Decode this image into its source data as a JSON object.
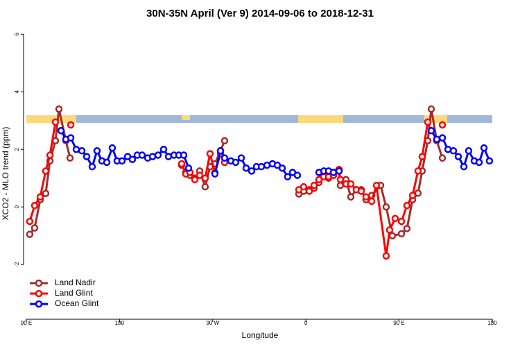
{
  "chart_data": {
    "type": "line",
    "title": "30N-35N April (Ver 9)   2014-09-06 to 2018-12-31",
    "x_label": "Longitude",
    "y_label": "XCO2 - MLO trend (ppm)",
    "xlim": [
      90,
      540
    ],
    "xticks": [
      {
        "value": 90,
        "label": "90 E"
      },
      180,
      {
        "value": 270,
        "label": "90 W"
      },
      {
        "value": 360,
        "label": "0"
      },
      {
        "value": 450,
        "label": "90 E"
      },
      {
        "value": 540,
        "label": "180"
      }
    ],
    "ylim": [
      -3.9,
      6.2
    ],
    "yticks": [
      -2,
      0,
      2,
      4,
      6
    ],
    "legend": "bottom-left",
    "series": [
      {
        "name": "Land Nadir",
        "color": "#a52a2a",
        "x": [
          93.3,
          98.0,
          103.4,
          108.7,
          112.8,
          118.1,
          121.5,
          128.2,
          132.2,
          null,
          240,
          244,
          248,
          252.7,
          257.4,
          262.7,
          267.4,
          272.1,
          277.5,
          281.5,
          null,
          353.2,
          357.8,
          363.2,
          367.9,
          372.6,
          377.3,
          381.9,
          386.6,
          392,
          393.3,
          398.7,
          403.4,
          408.7,
          413.4,
          418.1,
          423.5,
          432.2,
          437.5,
          443.5,
          452.3,
          457.6,
          463,
          468.3,
          472.3,
          477.7,
          481.1,
          486.4,
          491.8
        ],
        "values": [
          -0.95,
          -0.73,
          0.25,
          0.47,
          1.6,
          2.3,
          3.4,
          2.3,
          1.7,
          null,
          1.45,
          1.2,
          1.1,
          1.0,
          1.25,
          0.7,
          1.4,
          1.5,
          1.95,
          2.3,
          null,
          0.45,
          0.55,
          0.6,
          0.65,
          0.85,
          1.1,
          1.0,
          1.1,
          1.25,
          0.75,
          0.95,
          0.35,
          0.6,
          0.6,
          0.25,
          0.4,
          0.75,
          0,
          -1,
          -0.93,
          -0.75,
          0.25,
          0.48,
          1.25,
          2.3,
          3.4,
          2.3,
          1.7
        ]
      },
      {
        "name": "Land Glint",
        "color": "#ff0000",
        "x": [
          93.3,
          98.0,
          103.4,
          108.7,
          112.8,
          118.1,
          null,
          132.9,
          null,
          240,
          244,
          248,
          252.7,
          257.4,
          262.7,
          267.4,
          272.1,
          277.5,
          281.5,
          null,
          353.2,
          357.8,
          363.2,
          367.9,
          372.6,
          377.3,
          381.9,
          386.6,
          392,
          393.3,
          398.7,
          403.4,
          408.7,
          413.4,
          418.1,
          423.5,
          428.1,
          437.5,
          440.9,
          446.2,
          452.3,
          457.6,
          463,
          468.3,
          472.3,
          477.7,
          null,
          491.8
        ],
        "values": [
          -0.5,
          0.05,
          0.35,
          1.25,
          1.8,
          2.95,
          null,
          2.85,
          null,
          1.5,
          1.15,
          1.2,
          0.95,
          1.1,
          1.0,
          1.85,
          1.2,
          1.85,
          1.55,
          null,
          0.6,
          0.7,
          0.55,
          0.75,
          0.95,
          1.05,
          1.05,
          1.1,
          1.3,
          0.95,
          0.8,
          0.8,
          0.6,
          0.55,
          0.35,
          0.2,
          0.75,
          -1.7,
          -0.8,
          -0.4,
          -0.5,
          0.05,
          0.4,
          1.25,
          1.75,
          2.95,
          null,
          2.85
        ]
      },
      {
        "name": "Ocean Glint",
        "color": "#0000ff",
        "x": [
          123.5,
          128.2,
          132.9,
          138.2,
          143.6,
          148.3,
          153.6,
          158.3,
          163,
          167.7,
          173,
          177.7,
          182.4,
          187.8,
          192.4,
          197.1,
          201.8,
          207.2,
          211.9,
          217.2,
          222.6,
          227.3,
          232.6,
          237.3,
          242,
          246.7,
          null,
          272.1,
          277.5,
          281.5,
          287.5,
          292.2,
          297.6,
          302.3,
          307.6,
          312.3,
          317,
          322.4,
          327.7,
          332.4,
          337.1,
          342.4,
          347.1,
          351.8,
          null,
          372.6,
          377.3,
          381.9,
          386.6,
          392,
          null,
          481.1,
          486.4,
          491.8,
          497.2,
          502.5,
          507.2,
          512.6,
          517.2,
          522.6,
          527.3,
          532,
          537.3
        ],
        "values": [
          2.65,
          2.35,
          2.4,
          2.0,
          1.95,
          1.75,
          1.4,
          1.95,
          1.6,
          1.55,
          2.05,
          1.6,
          1.6,
          1.75,
          1.65,
          1.8,
          1.8,
          1.7,
          1.75,
          1.8,
          2.0,
          1.75,
          1.8,
          1.8,
          1.8,
          1.35,
          null,
          1.15,
          1.95,
          1.7,
          1.6,
          1.55,
          1.7,
          1.35,
          1.25,
          1.4,
          1.4,
          1.45,
          1.5,
          1.45,
          1.35,
          1.05,
          1.2,
          1.1,
          null,
          1.2,
          1.25,
          1.25,
          1.2,
          1.25,
          null,
          2.65,
          2.35,
          2.4,
          2.0,
          1.95,
          1.75,
          1.4,
          1.95,
          1.6,
          1.55,
          2.05,
          1.6
        ]
      }
    ]
  }
}
